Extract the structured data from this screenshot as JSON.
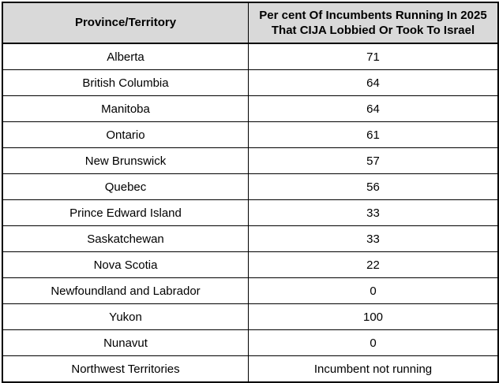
{
  "table": {
    "header": {
      "col1": "Province/Territory",
      "col2_line1": "Per cent Of Incumbents Running In 2025",
      "col2_line2": "That CIJA Lobbied Or Took To Israel"
    },
    "style": {
      "header_bg": "#d9d9d9",
      "border_color": "#000000",
      "text_color": "#000000"
    }
  },
  "chart_data": {
    "type": "table",
    "title": "",
    "columns": [
      "Province/Territory",
      "Per cent Of Incumbents Running In 2025 That CIJA Lobbied Or Took To Israel"
    ],
    "rows": [
      [
        "Alberta",
        "71"
      ],
      [
        "British Columbia",
        "64"
      ],
      [
        "Manitoba",
        "64"
      ],
      [
        "Ontario",
        "61"
      ],
      [
        "New Brunswick",
        "57"
      ],
      [
        "Quebec",
        "56"
      ],
      [
        "Prince Edward Island",
        "33"
      ],
      [
        "Saskatchewan",
        "33"
      ],
      [
        "Nova Scotia",
        "22"
      ],
      [
        "Newfoundland and Labrador",
        "0"
      ],
      [
        "Yukon",
        "100"
      ],
      [
        "Nunavut",
        "0"
      ],
      [
        "Northwest Territories",
        "Incumbent not running"
      ]
    ]
  }
}
